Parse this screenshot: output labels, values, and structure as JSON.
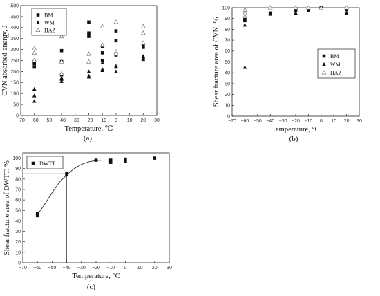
{
  "chart_data": [
    {
      "id": "a",
      "type": "scatter",
      "caption": "(a)",
      "title": "",
      "xlabel": "Temperature, ℃",
      "ylabel": "CVN absorbed energy, J",
      "xlim": [
        -70,
        30
      ],
      "ylim": [
        0,
        500
      ],
      "xticks": [
        -70,
        -60,
        -50,
        -40,
        -30,
        -20,
        -10,
        0,
        10,
        20,
        30
      ],
      "yticks": [
        0,
        50,
        100,
        150,
        200,
        250,
        300,
        350,
        400,
        450,
        500
      ],
      "grid": false,
      "legend_position": "top-left",
      "series": [
        {
          "name": "BM",
          "marker": "square",
          "points": [
            [
              -60,
              245
            ],
            [
              -60,
              235
            ],
            [
              -60,
              220
            ],
            [
              -40,
              295
            ],
            [
              -40,
              245
            ],
            [
              -40,
              185
            ],
            [
              -20,
              425
            ],
            [
              -20,
              375
            ],
            [
              -20,
              360
            ],
            [
              -10,
              315
            ],
            [
              -10,
              285
            ],
            [
              -10,
              250
            ],
            [
              0,
              385
            ],
            [
              0,
              340
            ],
            [
              0,
              275
            ],
            [
              20,
              315
            ],
            [
              20,
              310
            ],
            [
              20,
              260
            ]
          ]
        },
        {
          "name": "WM",
          "marker": "triangle-filled",
          "points": [
            [
              -60,
              120
            ],
            [
              -60,
              90
            ],
            [
              -60,
              65
            ],
            [
              -40,
              170
            ],
            [
              -40,
              165
            ],
            [
              -40,
              155
            ],
            [
              -20,
              200
            ],
            [
              -20,
              180
            ],
            [
              -20,
              175
            ],
            [
              -10,
              240
            ],
            [
              -10,
              210
            ],
            [
              -10,
              205
            ],
            [
              0,
              225
            ],
            [
              0,
              220
            ],
            [
              0,
              200
            ],
            [
              20,
              270
            ],
            [
              20,
              260
            ],
            [
              20,
              255
            ]
          ]
        },
        {
          "name": "HAZ",
          "marker": "triangle-open",
          "points": [
            [
              -60,
              305
            ],
            [
              -60,
              285
            ],
            [
              -60,
              250
            ],
            [
              -40,
              360
            ],
            [
              -40,
              245
            ],
            [
              -40,
              190
            ],
            [
              -20,
              280
            ],
            [
              -20,
              245
            ],
            [
              -10,
              405
            ],
            [
              -10,
              320
            ],
            [
              0,
              425
            ],
            [
              0,
              290
            ],
            [
              0,
              280
            ],
            [
              20,
              405
            ],
            [
              20,
              375
            ],
            [
              20,
              330
            ]
          ]
        }
      ]
    },
    {
      "id": "b",
      "type": "scatter",
      "caption": "(b)",
      "title": "",
      "xlabel": "Temperature, °C",
      "ylabel": "Shear fracture area of CVN, %",
      "xlim": [
        -70,
        30
      ],
      "ylim": [
        0,
        100
      ],
      "xticks": [
        -70,
        -60,
        -50,
        -40,
        -30,
        -20,
        -10,
        0,
        10,
        20,
        30
      ],
      "yticks": [
        0,
        10,
        20,
        30,
        40,
        50,
        60,
        70,
        80,
        90,
        100
      ],
      "grid": false,
      "legend_position": "center-right",
      "series": [
        {
          "name": "BM",
          "marker": "square",
          "points": [
            [
              -60,
              90
            ],
            [
              -60,
              88
            ],
            [
              -40,
              95
            ],
            [
              -20,
              97
            ],
            [
              -10,
              98
            ],
            [
              0,
              100
            ],
            [
              20,
              98
            ]
          ]
        },
        {
          "name": "WM",
          "marker": "triangle-filled",
          "points": [
            [
              -60,
              45
            ],
            [
              -60,
              84
            ],
            [
              -40,
              94
            ],
            [
              -20,
              95
            ],
            [
              -10,
              97
            ],
            [
              0,
              100
            ],
            [
              20,
              95
            ]
          ]
        },
        {
          "name": "HAZ",
          "marker": "triangle-open",
          "points": [
            [
              -60,
              98
            ],
            [
              -60,
              95
            ],
            [
              -60,
              92
            ],
            [
              -40,
              100
            ],
            [
              -20,
              100
            ],
            [
              -10,
              100
            ],
            [
              0,
              100
            ],
            [
              20,
              100
            ]
          ]
        }
      ]
    },
    {
      "id": "c",
      "type": "scatter",
      "caption": "(c)",
      "title": "",
      "xlabel": "Temperature, °C",
      "ylabel": "Shear fracture area of DWTT, %",
      "xlim": [
        -70,
        30
      ],
      "ylim": [
        0,
        105
      ],
      "xticks": [
        -70,
        -60,
        -50,
        -40,
        -30,
        -20,
        -10,
        0,
        10,
        20,
        30
      ],
      "yticks": [
        0,
        10,
        20,
        30,
        40,
        50,
        60,
        70,
        80,
        90,
        100
      ],
      "grid": false,
      "legend_position": "top-left",
      "series": [
        {
          "name": "DWTT",
          "marker": "square",
          "points": [
            [
              -60,
              47
            ],
            [
              -60,
              45
            ],
            [
              -40,
              85
            ],
            [
              -40,
              84
            ],
            [
              -20,
              98
            ],
            [
              -10,
              98
            ],
            [
              -10,
              96
            ],
            [
              0,
              99
            ],
            [
              0,
              97
            ],
            [
              20,
              100
            ]
          ]
        }
      ],
      "fit_curve": [
        [
          -60,
          46
        ],
        [
          -55,
          56
        ],
        [
          -50,
          67
        ],
        [
          -45,
          77
        ],
        [
          -40,
          84
        ],
        [
          -35,
          90
        ],
        [
          -30,
          94
        ],
        [
          -25,
          96.5
        ],
        [
          -20,
          97.7
        ],
        [
          -15,
          98
        ],
        [
          -10,
          98
        ],
        [
          0,
          98
        ],
        [
          10,
          98
        ],
        [
          20,
          98
        ]
      ],
      "reference_lines": {
        "x": -40,
        "y": 85
      }
    }
  ]
}
